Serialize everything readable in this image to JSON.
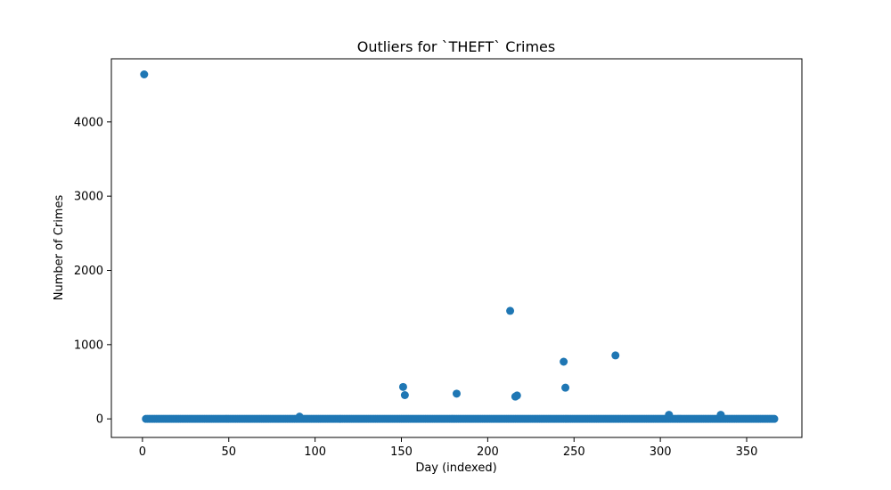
{
  "chart_data": {
    "type": "scatter",
    "title": "Outliers for `THEFT` Crimes",
    "xlabel": "Day (indexed)",
    "ylabel": "Number of Crimes",
    "xlim": [
      -18,
      382
    ],
    "ylim": [
      -250,
      4850
    ],
    "xticks": [
      0,
      50,
      100,
      150,
      200,
      250,
      300,
      350
    ],
    "yticks": [
      0,
      1000,
      2000,
      3000,
      4000
    ],
    "grid": false,
    "marker_color": "#1f77b4",
    "baseline": {
      "x_start": 2,
      "x_end": 366,
      "y": 0
    },
    "points": [
      {
        "x": 1,
        "y": 4640
      },
      {
        "x": 91,
        "y": 30
      },
      {
        "x": 151,
        "y": 430
      },
      {
        "x": 152,
        "y": 320
      },
      {
        "x": 182,
        "y": 340
      },
      {
        "x": 213,
        "y": 1455
      },
      {
        "x": 216,
        "y": 300
      },
      {
        "x": 217,
        "y": 315
      },
      {
        "x": 244,
        "y": 770
      },
      {
        "x": 245,
        "y": 420
      },
      {
        "x": 274,
        "y": 855
      },
      {
        "x": 305,
        "y": 55
      },
      {
        "x": 335,
        "y": 55
      }
    ]
  }
}
